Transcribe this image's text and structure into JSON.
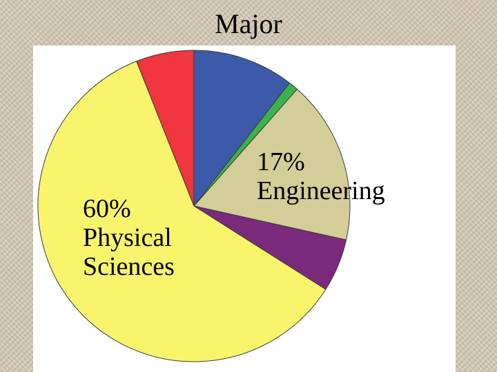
{
  "title": "Major",
  "chart_data": {
    "type": "pie",
    "title": "Major",
    "slices": [
      {
        "label": "",
        "pct_text": "",
        "value": 10.5,
        "color": "#3c5aa9"
      },
      {
        "label": "",
        "pct_text": "",
        "value": 1.0,
        "color": "#3cb34a"
      },
      {
        "label": "Engineering",
        "pct_text": "17%",
        "value": 17,
        "color": "#d3cd98"
      },
      {
        "label": "",
        "pct_text": "",
        "value": 5.5,
        "color": "#7b2a7b"
      },
      {
        "label": "Physical Sciences",
        "pct_text": "60%",
        "value": 60,
        "color": "#f8f46c"
      },
      {
        "label": "",
        "pct_text": "",
        "value": 6.0,
        "color": "#ef353d"
      }
    ],
    "start_angle_deg": 0,
    "direction": "clockwise",
    "labels": {
      "engineering": {
        "pct": "17%",
        "name": "Engineering"
      },
      "physical": {
        "pct": "60%",
        "line1": "Physical",
        "line2": "Sciences"
      }
    }
  }
}
